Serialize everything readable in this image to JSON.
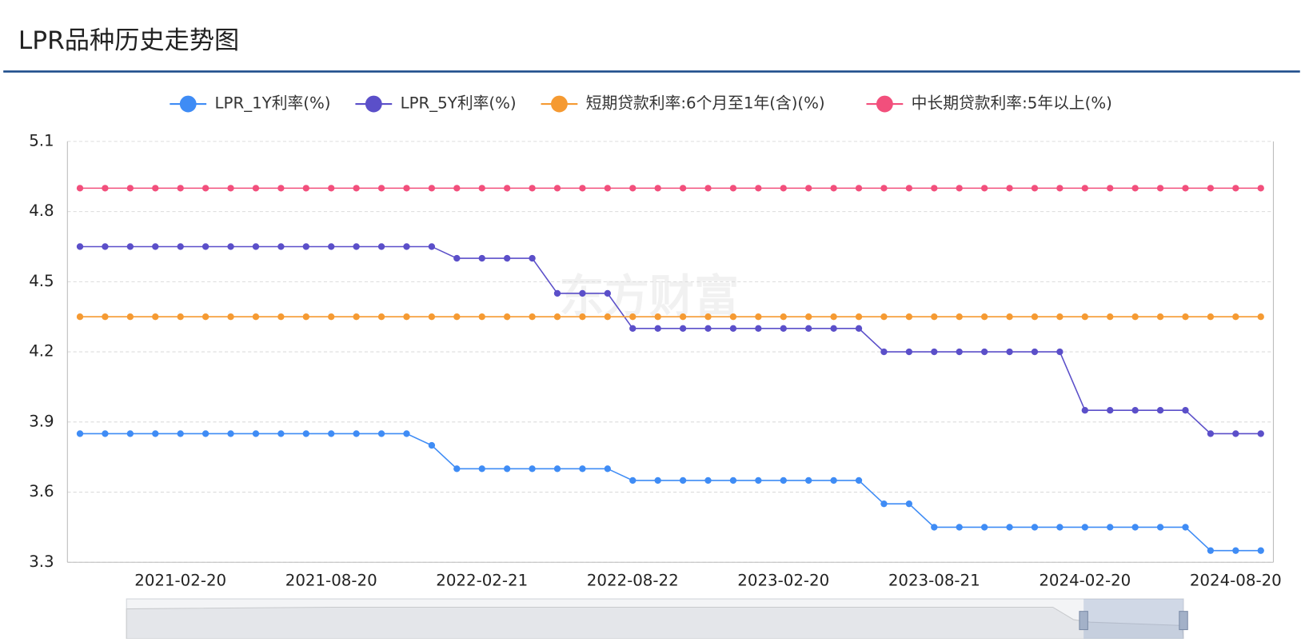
{
  "chart_data": {
    "type": "line",
    "title": "LPR品种历史走势图",
    "watermark": "东方财富",
    "categories": [
      null,
      null,
      null,
      null,
      "2021-02-20",
      null,
      null,
      null,
      null,
      null,
      "2021-08-20",
      null,
      null,
      null,
      null,
      null,
      "2022-02-21",
      null,
      null,
      null,
      null,
      null,
      "2022-08-22",
      null,
      null,
      null,
      null,
      null,
      "2023-02-20",
      null,
      null,
      null,
      null,
      null,
      "2023-08-21",
      null,
      null,
      null,
      null,
      null,
      "2024-02-20",
      null,
      null,
      null,
      null,
      null,
      "2024-08-20",
      null
    ],
    "series": [
      {
        "name": "LPR_1Y利率(%)",
        "color": "#3f8cf5",
        "values": [
          3.85,
          3.85,
          3.85,
          3.85,
          3.85,
          3.85,
          3.85,
          3.85,
          3.85,
          3.85,
          3.85,
          3.85,
          3.85,
          3.85,
          3.8,
          3.7,
          3.7,
          3.7,
          3.7,
          3.7,
          3.7,
          3.7,
          3.65,
          3.65,
          3.65,
          3.65,
          3.65,
          3.65,
          3.65,
          3.65,
          3.65,
          3.65,
          3.55,
          3.55,
          3.45,
          3.45,
          3.45,
          3.45,
          3.45,
          3.45,
          3.45,
          3.45,
          3.45,
          3.45,
          3.45,
          3.35,
          3.35,
          3.35
        ]
      },
      {
        "name": "LPR_5Y利率(%)",
        "color": "#5b4fc9",
        "values": [
          4.65,
          4.65,
          4.65,
          4.65,
          4.65,
          4.65,
          4.65,
          4.65,
          4.65,
          4.65,
          4.65,
          4.65,
          4.65,
          4.65,
          4.65,
          4.6,
          4.6,
          4.6,
          4.6,
          4.45,
          4.45,
          4.45,
          4.3,
          4.3,
          4.3,
          4.3,
          4.3,
          4.3,
          4.3,
          4.3,
          4.3,
          4.3,
          4.2,
          4.2,
          4.2,
          4.2,
          4.2,
          4.2,
          4.2,
          4.2,
          3.95,
          3.95,
          3.95,
          3.95,
          3.95,
          3.85,
          3.85,
          3.85
        ]
      },
      {
        "name": "短期贷款利率:6个月至1年(含)(%)",
        "color": "#f59a32",
        "values": [
          4.35,
          4.35,
          4.35,
          4.35,
          4.35,
          4.35,
          4.35,
          4.35,
          4.35,
          4.35,
          4.35,
          4.35,
          4.35,
          4.35,
          4.35,
          4.35,
          4.35,
          4.35,
          4.35,
          4.35,
          4.35,
          4.35,
          4.35,
          4.35,
          4.35,
          4.35,
          4.35,
          4.35,
          4.35,
          4.35,
          4.35,
          4.35,
          4.35,
          4.35,
          4.35,
          4.35,
          4.35,
          4.35,
          4.35,
          4.35,
          4.35,
          4.35,
          4.35,
          4.35,
          4.35,
          4.35,
          4.35,
          4.35
        ]
      },
      {
        "name": "中长期贷款利率:5年以上(%)",
        "color": "#f24f7c",
        "values": [
          4.9,
          4.9,
          4.9,
          4.9,
          4.9,
          4.9,
          4.9,
          4.9,
          4.9,
          4.9,
          4.9,
          4.9,
          4.9,
          4.9,
          4.9,
          4.9,
          4.9,
          4.9,
          4.9,
          4.9,
          4.9,
          4.9,
          4.9,
          4.9,
          4.9,
          4.9,
          4.9,
          4.9,
          4.9,
          4.9,
          4.9,
          4.9,
          4.9,
          4.9,
          4.9,
          4.9,
          4.9,
          4.9,
          4.9,
          4.9,
          4.9,
          4.9,
          4.9,
          4.9,
          4.9,
          4.9,
          4.9,
          4.9
        ]
      }
    ],
    "ylim": [
      3.3,
      5.1
    ],
    "yticks": [
      3.3,
      3.6,
      3.9,
      4.2,
      4.5,
      4.8,
      5.1
    ],
    "grid": true
  }
}
